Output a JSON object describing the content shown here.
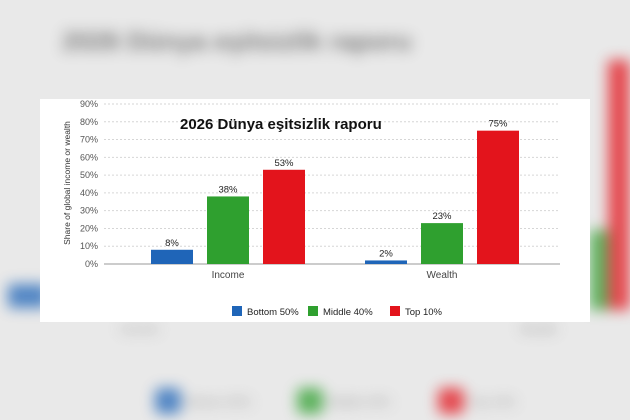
{
  "chart_data": {
    "type": "bar",
    "title": "2026 Dünya eşitsizlik raporu",
    "xlabel": "",
    "ylabel": "Share of global income or wealth",
    "categories": [
      "Income",
      "Wealth"
    ],
    "series": [
      {
        "name": "Bottom 50%",
        "values": [
          8,
          2
        ],
        "labels": [
          "8%",
          "2%"
        ],
        "color": "#1f65b8"
      },
      {
        "name": "Middle 40%",
        "values": [
          38,
          23
        ],
        "labels": [
          "38%",
          "23%"
        ],
        "color": "#2fa02f"
      },
      {
        "name": "Top 10%",
        "values": [
          53,
          75
        ],
        "labels": [
          "53%",
          "75%"
        ],
        "color": "#e3141c"
      }
    ],
    "ylim": [
      0,
      90
    ],
    "yticks": [
      "0%",
      "10%",
      "20%",
      "30%",
      "40%",
      "50%",
      "60%",
      "70%",
      "80%",
      "90%"
    ],
    "grid": true,
    "legend": "bottom"
  }
}
